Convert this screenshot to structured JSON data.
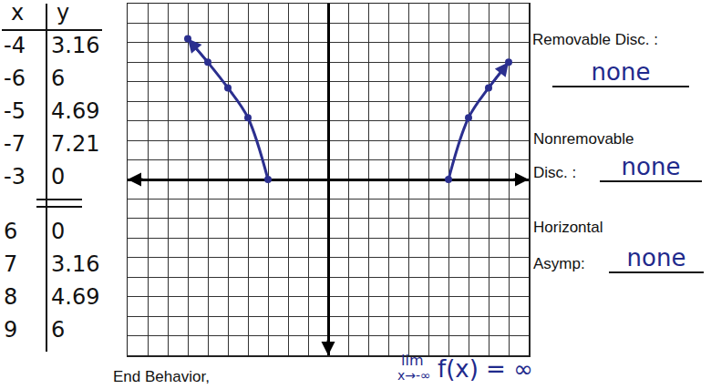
{
  "chart_data": {
    "type": "line",
    "series": [
      {
        "x": [
          -7,
          -6,
          -5,
          -4,
          -3
        ],
        "values": [
          7.21,
          6,
          4.69,
          3.16,
          0
        ]
      },
      {
        "x": [
          6,
          7,
          8,
          9
        ],
        "values": [
          0,
          3.16,
          4.69,
          6
        ]
      }
    ],
    "xlim": [
      -10,
      10
    ],
    "ylim": [
      -9,
      9
    ],
    "xticks": [
      -10,
      -9,
      -8,
      -7,
      -6,
      -5,
      -4,
      -3,
      -2,
      -1,
      0,
      1,
      2,
      3,
      4,
      5,
      6,
      7,
      8,
      9,
      10
    ],
    "yticks": [
      -9,
      -8,
      -7,
      -6,
      -5,
      -4,
      -3,
      -2,
      -1,
      0,
      1,
      2,
      3,
      4,
      5,
      6,
      7,
      8,
      9
    ],
    "grid": true,
    "tick_labels": false,
    "color": "#2b2f8f",
    "marker": "circle",
    "line_style": "solid"
  },
  "table": {
    "header": [
      "x",
      "y"
    ],
    "groups": [
      [
        [
          "-4",
          "3.16"
        ],
        [
          "-6",
          "6"
        ],
        [
          "-5",
          "4.69"
        ],
        [
          "-7",
          "7.21"
        ],
        [
          "-3",
          "0"
        ]
      ],
      [
        [
          "6",
          "0"
        ],
        [
          "7",
          "3.16"
        ],
        [
          "8",
          "4.69"
        ],
        [
          "9",
          "6"
        ]
      ]
    ]
  },
  "labels": {
    "removable": "Removable Disc. :",
    "removable_answer": "none",
    "nonremovable": [
      "Nonremovable",
      "Disc. :"
    ],
    "nonremovable_answer": "none",
    "horizontal": [
      "Horizontal",
      "Asymp:"
    ],
    "horizontal_answer": "none",
    "end_behavior": "End Behavior,",
    "limit": {
      "lim": "lim",
      "sub": "x→-∞",
      "expr": "f(x) = ∞"
    }
  }
}
